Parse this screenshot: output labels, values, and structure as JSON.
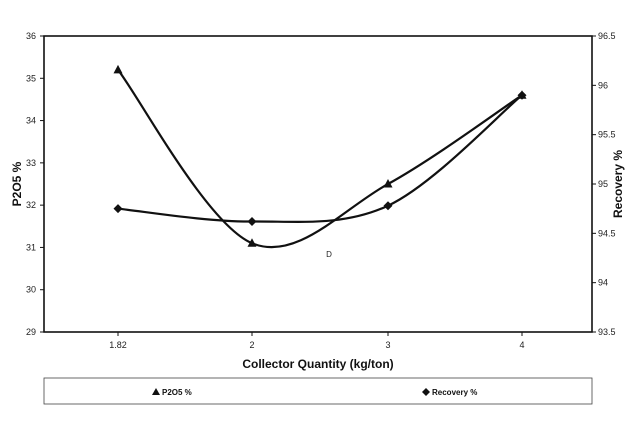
{
  "chart_data": {
    "type": "line",
    "categories": [
      "1.82",
      "2",
      "3",
      "4"
    ],
    "xlabel": "Collector Quantity (kg/ton)",
    "ylabel_left": "P2O5 %",
    "ylabel_right": "Recovery %",
    "ylim_left": [
      29,
      36
    ],
    "ylim_right": [
      93.5,
      96.5
    ],
    "yticks_left": [
      "29",
      "30",
      "31",
      "32",
      "33",
      "34",
      "35",
      "36"
    ],
    "yticks_right": [
      "93.5",
      "94",
      "94.5",
      "95",
      "95.5",
      "96",
      "96.5"
    ],
    "grid": false,
    "series": [
      {
        "name": "P2O5 %",
        "axis": "left",
        "marker": "triangle",
        "values": [
          35.2,
          31.1,
          32.5,
          34.6
        ]
      },
      {
        "name": "Recovery %",
        "axis": "right",
        "marker": "diamond",
        "values": [
          94.75,
          94.62,
          94.78,
          95.9
        ]
      }
    ],
    "legend": {
      "placement": "bottom",
      "items": [
        "P2O5 %",
        "Recovery %"
      ]
    },
    "annotations": [
      "D"
    ],
    "colors": {
      "line": "#111111",
      "axis": "#111111"
    }
  }
}
